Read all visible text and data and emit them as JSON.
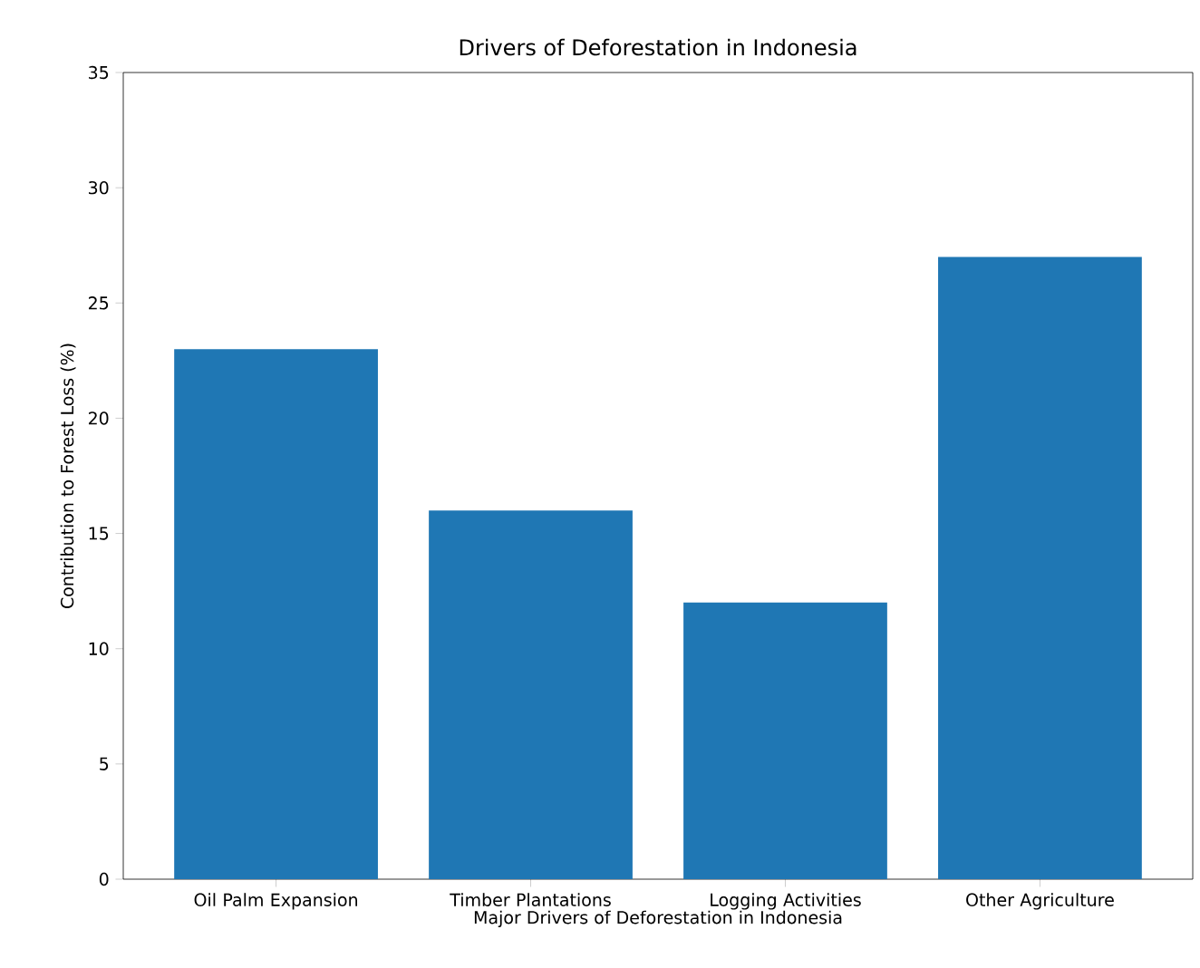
{
  "chart_data": {
    "type": "bar",
    "title": "Drivers of Deforestation in Indonesia",
    "xlabel": "Major Drivers of Deforestation in Indonesia",
    "ylabel": "Contribution to Forest Loss (%)",
    "categories": [
      "Oil Palm Expansion",
      "Timber Plantations",
      "Logging Activities",
      "Other Agriculture"
    ],
    "values": [
      23,
      16,
      12,
      27
    ],
    "color": "#1f77b4",
    "ylim": [
      0,
      35
    ],
    "yticks": [
      0,
      5,
      10,
      15,
      20,
      25,
      30,
      35
    ],
    "grid": false
  }
}
